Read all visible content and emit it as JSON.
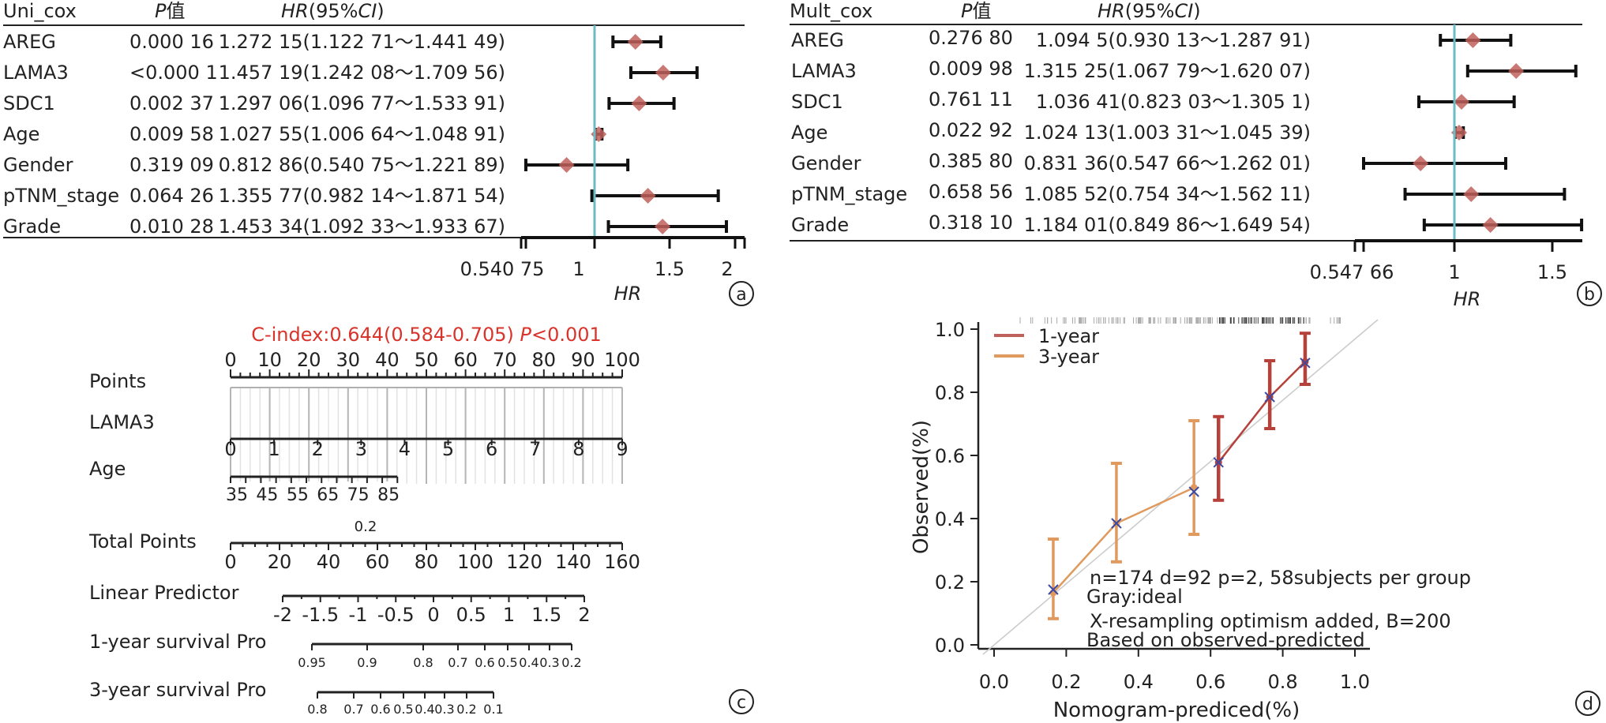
{
  "chart_data": [
    {
      "panel": "a",
      "type": "forest",
      "header": {
        "model": "Uni_cox",
        "p_col": "P值",
        "p_col_italic": "P",
        "p_col_suffix": "值",
        "hr_col_italic": "HR",
        "hr_col_mid": "(95%",
        "hr_col_italic2": "CI",
        "hr_col_end": ")"
      },
      "rows": [
        {
          "label": "AREG",
          "p": "0.000 16",
          "hr_text": "1.272 15(1.122 71～1.441 49)",
          "hr": 1.27215,
          "lo": 1.12271,
          "hi": 1.44149
        },
        {
          "label": "LAMA3",
          "p": "<0.000 1",
          "hr_text": "1.457 19(1.242 08～1.709 56)",
          "hr": 1.45719,
          "lo": 1.24208,
          "hi": 1.70956
        },
        {
          "label": "SDC1",
          "p": "0.002 37",
          "hr_text": "1.297 06(1.096 77～1.533 91)",
          "hr": 1.29706,
          "lo": 1.09677,
          "hi": 1.53391
        },
        {
          "label": "Age",
          "p": "0.009 58",
          "hr_text": "1.027 55(1.006 64～1.048 91)",
          "hr": 1.02755,
          "lo": 1.00664,
          "hi": 1.04891
        },
        {
          "label": "Gender",
          "p": "0.319 09",
          "hr_text": "0.812 86(0.540 75～1.221 89)",
          "hr": 0.81286,
          "lo": 0.54075,
          "hi": 1.22189
        },
        {
          "label": "pTNM_stage",
          "p": "0.064 26",
          "hr_text": "1.355 77(0.982 14～1.871 54)",
          "hr": 1.35577,
          "lo": 0.98214,
          "hi": 1.87154
        },
        {
          "label": "Grade",
          "p": "0.010 28",
          "hr_text": "1.453 34(1.092 33～1.933 67)",
          "hr": 1.45334,
          "lo": 1.09233,
          "hi": 1.93367
        }
      ],
      "x_ticks": [
        {
          "v": 0.54075,
          "label": "0.540 75"
        },
        {
          "v": 1,
          "label": "1"
        },
        {
          "v": 1.5,
          "label": "1.5"
        },
        {
          "v": 2,
          "label": "2"
        }
      ],
      "xlim": [
        0.54075,
        2.1
      ],
      "reference_line": 1,
      "xlabel": "HR",
      "panel_label": "a"
    },
    {
      "panel": "b",
      "type": "forest",
      "header": {
        "model": "Mult_cox",
        "p_col": "P值",
        "p_col_italic": "P",
        "p_col_suffix": "值",
        "hr_col_italic": "HR",
        "hr_col_mid": "(95%",
        "hr_col_italic2": "CI",
        "hr_col_end": ")"
      },
      "rows": [
        {
          "label": "AREG",
          "p": "0.276 80",
          "hr_text": "1.094 5(0.930 13～1.287 91)",
          "hr": 1.0945,
          "lo": 0.93013,
          "hi": 1.28791
        },
        {
          "label": "LAMA3",
          "p": "0.009 98",
          "hr_text": "1.315 25(1.067 79～1.620 07)",
          "hr": 1.31525,
          "lo": 1.06779,
          "hi": 1.62007
        },
        {
          "label": "SDC1",
          "p": "0.761 11",
          "hr_text": "1.036 41(0.823 03～1.305 1)",
          "hr": 1.03641,
          "lo": 0.82303,
          "hi": 1.3051
        },
        {
          "label": "Age",
          "p": "0.022 92",
          "hr_text": "1.024 13(1.003 31～1.045 39)",
          "hr": 1.02413,
          "lo": 1.00331,
          "hi": 1.04539
        },
        {
          "label": "Gender",
          "p": "0.385 80",
          "hr_text": "0.831 36(0.547 66～1.262 01)",
          "hr": 0.83136,
          "lo": 0.54766,
          "hi": 1.26201
        },
        {
          "label": "pTNM_stage",
          "p": "0.658 56",
          "hr_text": "1.085 52(0.754 34～1.562 11)",
          "hr": 1.08552,
          "lo": 0.75434,
          "hi": 1.56211
        },
        {
          "label": "Grade",
          "p": "0.318 10",
          "hr_text": "1.184 01(0.849 86～1.649 54)",
          "hr": 1.18401,
          "lo": 0.84986,
          "hi": 1.64954
        }
      ],
      "x_ticks": [
        {
          "v": 0.54766,
          "label": "0.547 66"
        },
        {
          "v": 1,
          "label": "1"
        },
        {
          "v": 1.5,
          "label": "1.5"
        }
      ],
      "xlim": [
        0.54766,
        1.65
      ],
      "reference_line": 1,
      "xlabel": "HR",
      "panel_label": "b"
    },
    {
      "panel": "c",
      "type": "nomogram",
      "title": "C-index:0.644(0.584-0.705) ",
      "title_p_italic": "P",
      "title_p_rest": "<0.001",
      "title_color": "#d9342b",
      "scales": [
        {
          "name": "Points",
          "ticks": [
            0,
            10,
            20,
            30,
            40,
            50,
            60,
            70,
            80,
            90,
            100
          ],
          "range": [
            0,
            100
          ],
          "minor_step": 2.5,
          "labels_above": true
        },
        {
          "name": "LAMA3",
          "ticks": [
            0,
            1,
            2,
            3,
            4,
            5,
            6,
            7,
            8,
            9
          ],
          "range_points": [
            0,
            100
          ]
        },
        {
          "name": "Age",
          "ticks": [
            35,
            45,
            55,
            65,
            75,
            85
          ],
          "minor_ticks": [
            35,
            40,
            45,
            50,
            55,
            60,
            65,
            70,
            75,
            80,
            85,
            90
          ],
          "range_values": [
            35,
            90
          ],
          "range_points": [
            0,
            42.6
          ]
        },
        {
          "name": "Total Points",
          "ticks": [
            0,
            20,
            40,
            60,
            80,
            100,
            120,
            140,
            160
          ],
          "range": [
            0,
            160
          ],
          "minor_step": 5,
          "annotation": "0.2"
        },
        {
          "name": "Linear Predictor",
          "ticks": [
            "-2",
            "-1.5",
            "-1",
            "-0.5",
            "0",
            "0.5",
            "1",
            "1.5",
            "2"
          ],
          "range": [
            -2,
            2
          ]
        },
        {
          "name": "1-year survival Pro",
          "ticks": [
            "0.95",
            "0.9",
            "0.8",
            "0.7",
            "0.6",
            "0.5",
            "0.4",
            "0.3",
            "0.2"
          ]
        },
        {
          "name": "3-year survival Pro",
          "ticks": [
            "0.8",
            "0.7",
            "0.6",
            "0.5",
            "0.4",
            "0.3",
            "0.2",
            "0.1"
          ]
        }
      ],
      "panel_label": "c"
    },
    {
      "panel": "d",
      "type": "line",
      "title": "",
      "xlabel": "Nomogram-prediced(%)",
      "ylabel": "Observed(%)",
      "xlim": [
        -0.04,
        1.04
      ],
      "ylim": [
        -0.03,
        1.0
      ],
      "x_ticks": [
        "0.0",
        "0.2",
        "0.4",
        "0.6",
        "0.8",
        "1.0"
      ],
      "y_ticks": [
        "0.0",
        "0.2",
        "0.4",
        "0.6",
        "0.8",
        "1.0"
      ],
      "series": [
        {
          "name": "1-year",
          "color": "#b5413a",
          "x": [
            0.622,
            0.764,
            0.862
          ],
          "y": [
            0.578,
            0.785,
            0.897
          ],
          "y_corrected": [
            0.578,
            0.785,
            0.893
          ],
          "err_low": [
            0.458,
            0.685,
            0.825
          ],
          "err_high": [
            0.723,
            0.9,
            0.987
          ]
        },
        {
          "name": "3-year",
          "color": "#e09a5e",
          "x": [
            0.164,
            0.339,
            0.554
          ],
          "y": [
            0.165,
            0.385,
            0.498
          ],
          "y_corrected": [
            0.175,
            0.385,
            0.485
          ],
          "err_low": [
            0.083,
            0.263,
            0.35
          ],
          "err_high": [
            0.335,
            0.575,
            0.71
          ]
        }
      ],
      "ideal_line": {
        "label": "Gray:ideal",
        "color": "#cccccc"
      },
      "annotations": [
        "n=174 d=92 p=2, 58subjects per group",
        "Gray:ideal",
        "X-resampling optimism added, B=200",
        "Based on observed-predicted"
      ],
      "legend": "top-left",
      "panel_label": "d"
    }
  ],
  "colors": {
    "diamond": "#c0605a",
    "reference_line": "#6bbcc6",
    "marker_x": "#3b4aa0",
    "axis": "#222222"
  }
}
